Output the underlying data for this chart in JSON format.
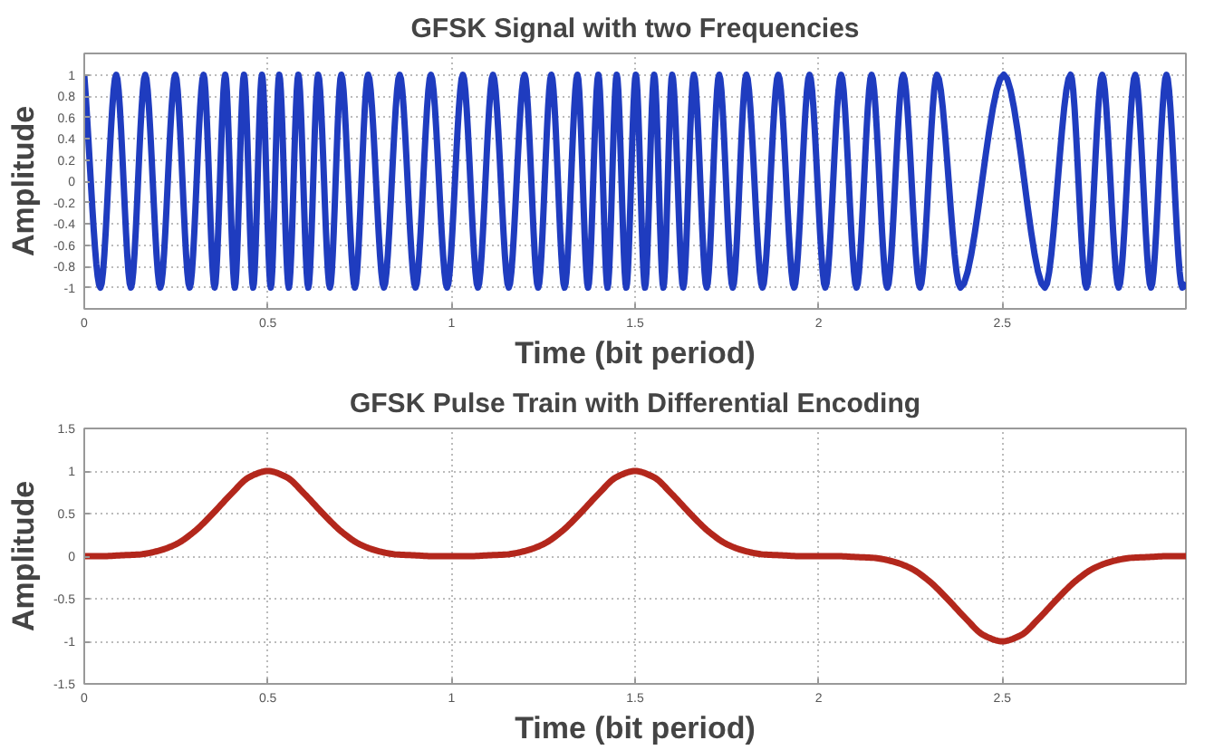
{
  "chart_data": [
    {
      "type": "line",
      "title": "GFSK Signal with two Frequencies",
      "xlabel": "Time (bit period)",
      "ylabel": "Amplitude",
      "xlim": [
        0,
        3
      ],
      "ylim": [
        -1.2,
        1.2
      ],
      "xticks": [
        0,
        0.5,
        1,
        1.5,
        2,
        2.5
      ],
      "yticks": [
        -1,
        -0.8,
        -0.6,
        -0.4,
        -0.2,
        0,
        0.2,
        0.4,
        0.6,
        0.8,
        1
      ],
      "grid": true,
      "series": [
        {
          "color": "#1f3cbf",
          "x": [
            0,
            0.044,
            0.087,
            0.127,
            0.166,
            0.207,
            0.248,
            0.287,
            0.325,
            0.355,
            0.384,
            0.41,
            0.435,
            0.46,
            0.484,
            0.508,
            0.531,
            0.557,
            0.583,
            0.61,
            0.637,
            0.669,
            0.7,
            0.737,
            0.773,
            0.816,
            0.859,
            0.902,
            0.944,
            0.988,
            1.031,
            1.072,
            1.113,
            1.156,
            1.199,
            1.236,
            1.272,
            1.308,
            1.343,
            1.372,
            1.4,
            1.425,
            1.45,
            1.476,
            1.502,
            1.527,
            1.552,
            1.577,
            1.601,
            1.631,
            1.66,
            1.695,
            1.729,
            1.766,
            1.803,
            1.847,
            1.89,
            1.933,
            1.975,
            2.018,
            2.061,
            2.103,
            2.144,
            2.187,
            2.23,
            2.276,
            2.322,
            2.386,
            2.504,
            2.616,
            2.686,
            2.729,
            2.772,
            2.817,
            2.862,
            2.905,
            2.947,
            2.99,
            3.0
          ],
          "values": [
            1,
            -1,
            1,
            -1,
            1,
            -1,
            1,
            -1,
            1,
            -1,
            1,
            -1,
            1,
            -1,
            1,
            -1,
            1,
            -1,
            1,
            -1,
            1,
            -1,
            1,
            -1,
            1,
            -1,
            1,
            -1,
            1,
            -1,
            1,
            -1,
            1,
            -1,
            1,
            -1,
            1,
            -1,
            1,
            -1,
            1,
            -1,
            1,
            -1,
            1,
            -1,
            1,
            -1,
            1,
            -1,
            1,
            -1,
            1,
            -1,
            1,
            -1,
            1,
            -1,
            1,
            -1,
            1,
            -1,
            1,
            -1,
            1,
            -1,
            1,
            -1,
            1,
            -1,
            1,
            -1,
            1,
            -1,
            1,
            -1,
            1,
            -1,
            -0.95
          ]
        }
      ]
    },
    {
      "type": "line",
      "title": "GFSK Pulse Train with Differential Encoding",
      "xlabel": "Time (bit period)",
      "ylabel": "Amplitude",
      "xlim": [
        0,
        3
      ],
      "ylim": [
        -1.5,
        1.5
      ],
      "xticks": [
        0,
        0.5,
        1,
        1.5,
        2,
        2.5
      ],
      "yticks": [
        -1.5,
        -1,
        -0.5,
        0,
        0.5,
        1,
        1.5
      ],
      "grid": true,
      "series": [
        {
          "color": "#b3271c",
          "x": [
            0,
            0.05,
            0.1,
            0.15,
            0.2,
            0.25,
            0.3,
            0.35,
            0.4,
            0.45,
            0.5,
            0.55,
            0.6,
            0.65,
            0.7,
            0.75,
            0.8,
            0.85,
            0.9,
            0.95,
            1.0,
            1.05,
            1.1,
            1.15,
            1.2,
            1.25,
            1.3,
            1.35,
            1.4,
            1.45,
            1.5,
            1.55,
            1.6,
            1.65,
            1.7,
            1.75,
            1.8,
            1.85,
            1.9,
            1.95,
            2.0,
            2.05,
            2.1,
            2.15,
            2.2,
            2.25,
            2.3,
            2.35,
            2.4,
            2.45,
            2.5,
            2.55,
            2.6,
            2.65,
            2.7,
            2.75,
            2.8,
            2.85,
            2.9,
            2.95,
            3.0
          ],
          "values": [
            0,
            0,
            0.01,
            0.02,
            0.06,
            0.14,
            0.29,
            0.5,
            0.73,
            0.93,
            1,
            0.93,
            0.73,
            0.5,
            0.29,
            0.14,
            0.06,
            0.02,
            0.01,
            0,
            0,
            0,
            0.01,
            0.02,
            0.06,
            0.14,
            0.29,
            0.5,
            0.73,
            0.93,
            1,
            0.93,
            0.73,
            0.5,
            0.29,
            0.14,
            0.06,
            0.02,
            0.01,
            0,
            0,
            0,
            -0.01,
            -0.02,
            -0.06,
            -0.14,
            -0.29,
            -0.5,
            -0.73,
            -0.93,
            -1,
            -0.93,
            -0.73,
            -0.5,
            -0.29,
            -0.14,
            -0.06,
            -0.02,
            -0.01,
            0,
            0
          ]
        }
      ]
    }
  ]
}
